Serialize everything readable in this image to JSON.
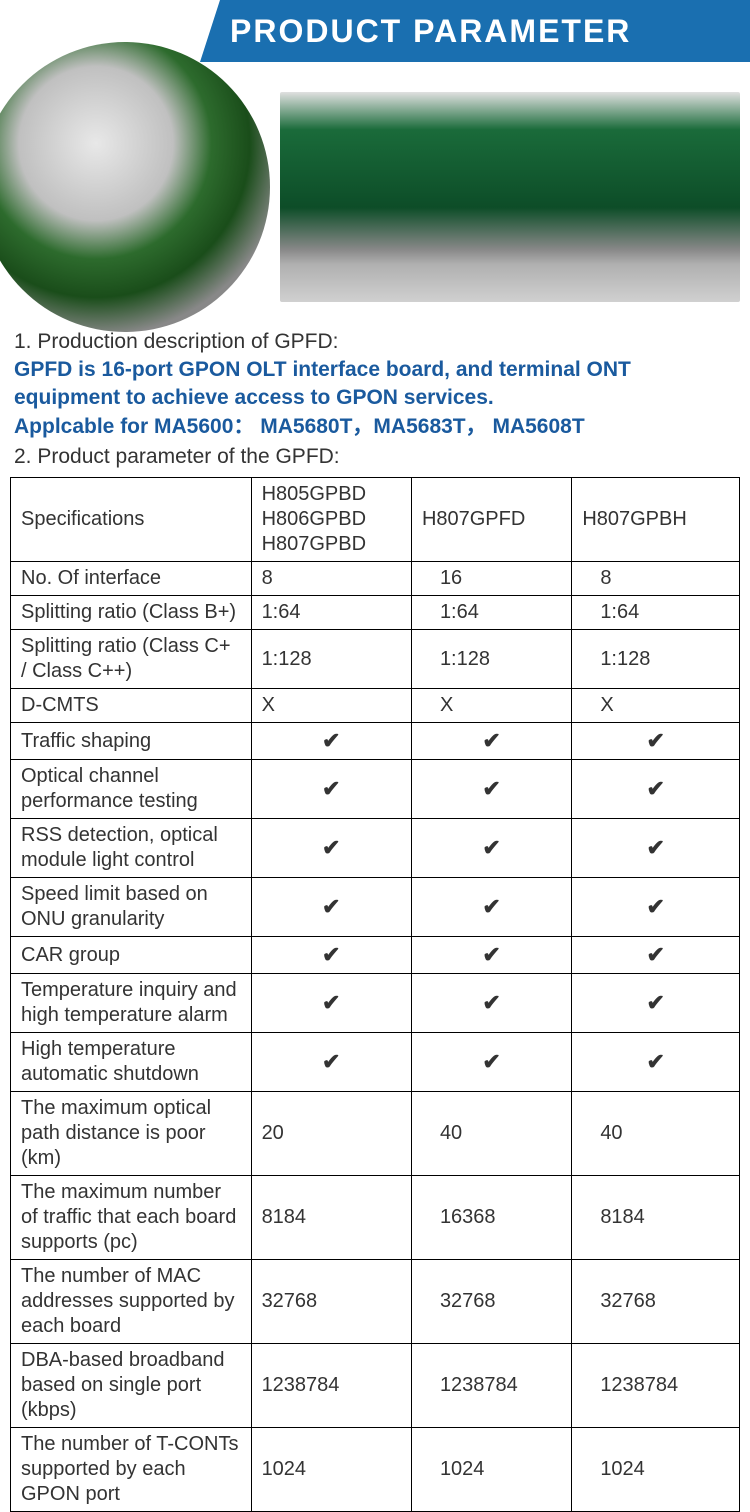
{
  "header": {
    "title": "PRODUCT PARAMETER"
  },
  "colors": {
    "banner_bg": "#1a6fb0",
    "banner_text": "#ffffff",
    "highlight_text": "#1a5a9e",
    "body_text": "#333333",
    "border": "#000000"
  },
  "description": {
    "line1": "1. Production description of GPFD:",
    "highlight1": "GPFD is 16-port GPON OLT interface board, and terminal ONT equipment to achieve access to GPON services.",
    "highlight2": "Applcable for MA5600：  MA5680T，MA5683T，  MA5608T",
    "line2": "2. Product parameter of the GPFD:"
  },
  "table": {
    "header": {
      "spec": "Specifications",
      "colA": "H805GPBD\nH806GPBD\nH807GPBD",
      "colB": "H807GPFD",
      "colC": "H807GPBH"
    },
    "check_glyph": "✔",
    "rows": [
      {
        "spec": "No. Of interface",
        "a": "8",
        "b": "16",
        "c": "8"
      },
      {
        "spec": "Splitting ratio\n (Class B+)",
        "a": "1:64",
        "b": "1:64",
        "c": "1:64"
      },
      {
        "spec": "Splitting ratio\n (Class C+ / Class C++)",
        "a": "1:128",
        "b": "1:128",
        "c": "1:128"
      },
      {
        "spec": "D-CMTS",
        "a": "X",
        "b": "X",
        "c": "X"
      },
      {
        "spec": "Traffic shaping",
        "a": "✔",
        "b": "✔",
        "c": "✔"
      },
      {
        "spec": "Optical channel performance testing",
        "a": "✔",
        "b": "✔",
        "c": "✔"
      },
      {
        "spec": "RSS detection, optical module light control",
        "a": "✔",
        "b": "✔",
        "c": "✔"
      },
      {
        "spec": "Speed limit based on ONU granularity",
        "a": "✔",
        "b": "✔",
        "c": "✔"
      },
      {
        "spec": "CAR group",
        "a": "✔",
        "b": "✔",
        "c": "✔"
      },
      {
        "spec": "Temperature inquiry and high temperature alarm",
        "a": "✔",
        "b": "✔",
        "c": "✔"
      },
      {
        "spec": "High temperature automatic shutdown",
        "a": "✔",
        "b": "✔",
        "c": "✔"
      },
      {
        "spec": "The maximum optical path distance is poor (km)",
        "a": "20",
        "b": "40",
        "c": "40"
      },
      {
        "spec": "The maximum number of traffic that each board supports (pc)",
        "a": "8184",
        "b": "16368",
        "c": "8184"
      },
      {
        "spec": "The number of MAC addresses supported by each board",
        "a": "32768",
        "b": "32768",
        "c": "32768"
      },
      {
        "spec": "DBA-based broadband based on single port (kbps)",
        "a": "1238784",
        "b": "1238784",
        "c": "1238784"
      },
      {
        "spec": "The number of T-CONTs supported by each GPON port",
        "a": "1024",
        "b": "1024",
        "c": "1024"
      }
    ]
  }
}
